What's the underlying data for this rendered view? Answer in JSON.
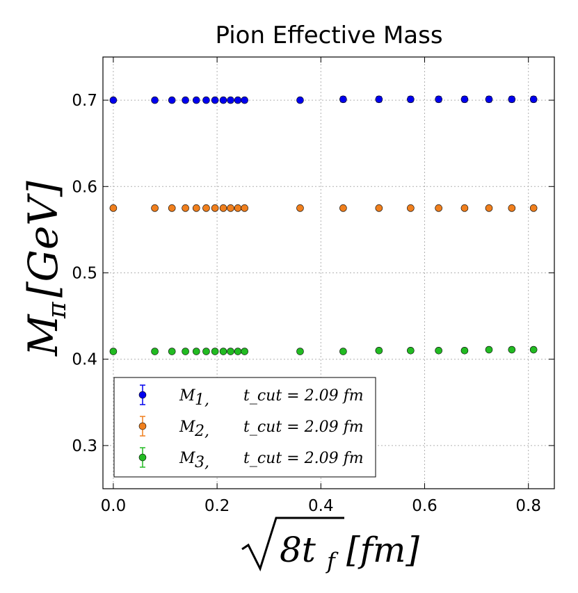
{
  "chart_data": {
    "type": "scatter",
    "title": "Pion Effective Mass",
    "xlabel": "√8t_f [fm]",
    "ylabel": "M_π [GeV]",
    "xlabel_parts": {
      "radicand": "8t",
      "subscript": "f",
      "unit": "[fm]"
    },
    "ylabel_parts": {
      "main": "M",
      "subscript": "π",
      "unit": "[GeV]"
    },
    "xlim": [
      -0.02,
      0.85
    ],
    "ylim": [
      0.25,
      0.75
    ],
    "xticks": [
      0.0,
      0.2,
      0.4,
      0.6,
      0.8
    ],
    "xtick_labels": [
      "0.0",
      "0.2",
      "0.4",
      "0.6",
      "0.8"
    ],
    "yticks": [
      0.3,
      0.4,
      0.5,
      0.6,
      0.7
    ],
    "ytick_labels": [
      "0.3",
      "0.4",
      "0.5",
      "0.6",
      "0.7"
    ],
    "grid": true,
    "legend_position": "bottom-left",
    "x": [
      0.0,
      0.08,
      0.113,
      0.139,
      0.16,
      0.179,
      0.196,
      0.212,
      0.226,
      0.24,
      0.253,
      0.36,
      0.443,
      0.512,
      0.573,
      0.627,
      0.677,
      0.724,
      0.768,
      0.81
    ],
    "series": [
      {
        "name": "M_1",
        "legend_main": "M",
        "legend_sub": "1",
        "legend_cut": "t_cut = 2.09 fm",
        "color": "#0000ee",
        "values": [
          0.7,
          0.7,
          0.7,
          0.7,
          0.7,
          0.7,
          0.7,
          0.7,
          0.7,
          0.7,
          0.7,
          0.7,
          0.701,
          0.701,
          0.701,
          0.701,
          0.701,
          0.701,
          0.701,
          0.701
        ],
        "errors": [
          0.002,
          0.002,
          0.002,
          0.002,
          0.002,
          0.002,
          0.002,
          0.002,
          0.002,
          0.002,
          0.002,
          0.002,
          0.003,
          0.003,
          0.003,
          0.003,
          0.003,
          0.003,
          0.003,
          0.003
        ]
      },
      {
        "name": "M_2",
        "legend_main": "M",
        "legend_sub": "2",
        "legend_cut": "t_cut = 2.09 fm",
        "color": "#f07f1d",
        "values": [
          0.575,
          0.575,
          0.575,
          0.575,
          0.575,
          0.575,
          0.575,
          0.575,
          0.575,
          0.575,
          0.575,
          0.575,
          0.575,
          0.575,
          0.575,
          0.575,
          0.575,
          0.575,
          0.575,
          0.575
        ],
        "errors": [
          0.001,
          0.001,
          0.001,
          0.001,
          0.001,
          0.001,
          0.001,
          0.001,
          0.001,
          0.001,
          0.001,
          0.001,
          0.001,
          0.001,
          0.001,
          0.001,
          0.001,
          0.001,
          0.001,
          0.001
        ]
      },
      {
        "name": "M_3",
        "legend_main": "M",
        "legend_sub": "3",
        "legend_cut": "t_cut = 2.09 fm",
        "color": "#22bb22",
        "values": [
          0.409,
          0.409,
          0.409,
          0.409,
          0.409,
          0.409,
          0.409,
          0.409,
          0.409,
          0.409,
          0.409,
          0.409,
          0.409,
          0.41,
          0.41,
          0.41,
          0.41,
          0.411,
          0.411,
          0.411
        ],
        "errors": [
          0.002,
          0.002,
          0.002,
          0.002,
          0.002,
          0.002,
          0.002,
          0.002,
          0.002,
          0.002,
          0.002,
          0.002,
          0.002,
          0.002,
          0.002,
          0.002,
          0.002,
          0.002,
          0.002,
          0.002
        ]
      }
    ]
  }
}
